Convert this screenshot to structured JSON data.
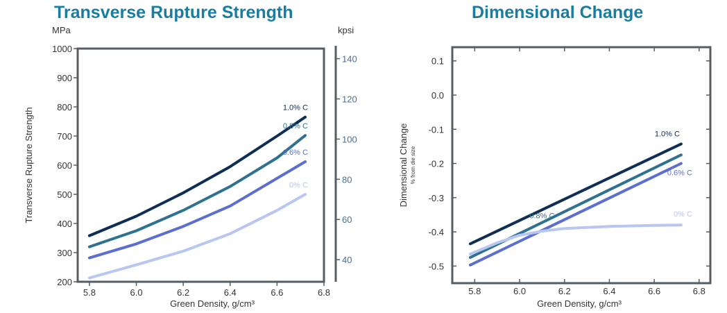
{
  "chart_data": [
    {
      "type": "line",
      "title": "Transverse Rupture Strength",
      "xlabel": "Green Density, g/cm³",
      "ylabel": "Transverse Rupture Strength",
      "ylabel_left_unit": "MPa",
      "ylabel_right_unit": "kpsi",
      "xlim": [
        5.75,
        6.8
      ],
      "ylim": [
        200,
        1000
      ],
      "x_ticks": [
        "5.8",
        "6.0",
        "6.2",
        "6.4",
        "6.6",
        "6.8"
      ],
      "y_ticks": [
        "200",
        "300",
        "400",
        "500",
        "600",
        "700",
        "800",
        "900",
        "1000"
      ],
      "y2_ticks": [
        "40",
        "60",
        "80",
        "100",
        "120",
        "140"
      ],
      "y2_tick_values": [
        40,
        60,
        80,
        100,
        120,
        140
      ],
      "y2_factor": 6.895,
      "series": [
        {
          "name": "1.0% C",
          "color": "#0f2e55",
          "x": [
            5.8,
            6.0,
            6.2,
            6.4,
            6.6,
            6.72
          ],
          "y": [
            358,
            425,
            505,
            595,
            700,
            765
          ]
        },
        {
          "name": "0.8% C",
          "color": "#2e7190",
          "x": [
            5.8,
            6.0,
            6.2,
            6.4,
            6.6,
            6.72
          ],
          "y": [
            320,
            375,
            445,
            527,
            625,
            702
          ]
        },
        {
          "name": "0.6% C",
          "color": "#5c6fd0",
          "x": [
            5.8,
            6.0,
            6.2,
            6.4,
            6.6,
            6.72
          ],
          "y": [
            282,
            330,
            390,
            460,
            555,
            612
          ]
        },
        {
          "name": "0% C",
          "color": "#b8c6f2",
          "x": [
            5.8,
            6.0,
            6.2,
            6.4,
            6.6,
            6.72
          ],
          "y": [
            213,
            258,
            305,
            365,
            445,
            500
          ]
        }
      ]
    },
    {
      "type": "line",
      "title": "Dimensional Change",
      "xlabel": "Green Density, g/cm³",
      "ylabel": "Dimensional Change",
      "ylabel_sub": "% from die size",
      "xlim": [
        5.7,
        6.85
      ],
      "ylim": [
        -0.55,
        0.14
      ],
      "x_ticks": [
        "5.8",
        "6.0",
        "6.2",
        "6.4",
        "6.6",
        "6.8"
      ],
      "y_ticks": [
        "-0.5",
        "-0.4",
        "-0.3",
        "-0.2",
        "-0.1",
        "0.0",
        "0.1"
      ],
      "series": [
        {
          "name": "1.0% C",
          "color": "#0f2e55",
          "x": [
            5.78,
            6.72
          ],
          "y": [
            -0.435,
            -0.143
          ]
        },
        {
          "name": "0.8% C",
          "color": "#2e7190",
          "x": [
            5.78,
            6.72
          ],
          "y": [
            -0.475,
            -0.175
          ]
        },
        {
          "name": "0.6% C",
          "color": "#5c6fd0",
          "x": [
            5.78,
            6.72
          ],
          "y": [
            -0.497,
            -0.2
          ]
        },
        {
          "name": "0% C",
          "color": "#b8c6f2",
          "x": [
            5.78,
            5.9,
            6.0,
            6.1,
            6.2,
            6.4,
            6.6,
            6.72
          ],
          "y": [
            -0.465,
            -0.432,
            -0.41,
            -0.398,
            -0.39,
            -0.384,
            -0.381,
            -0.38
          ]
        }
      ]
    }
  ]
}
